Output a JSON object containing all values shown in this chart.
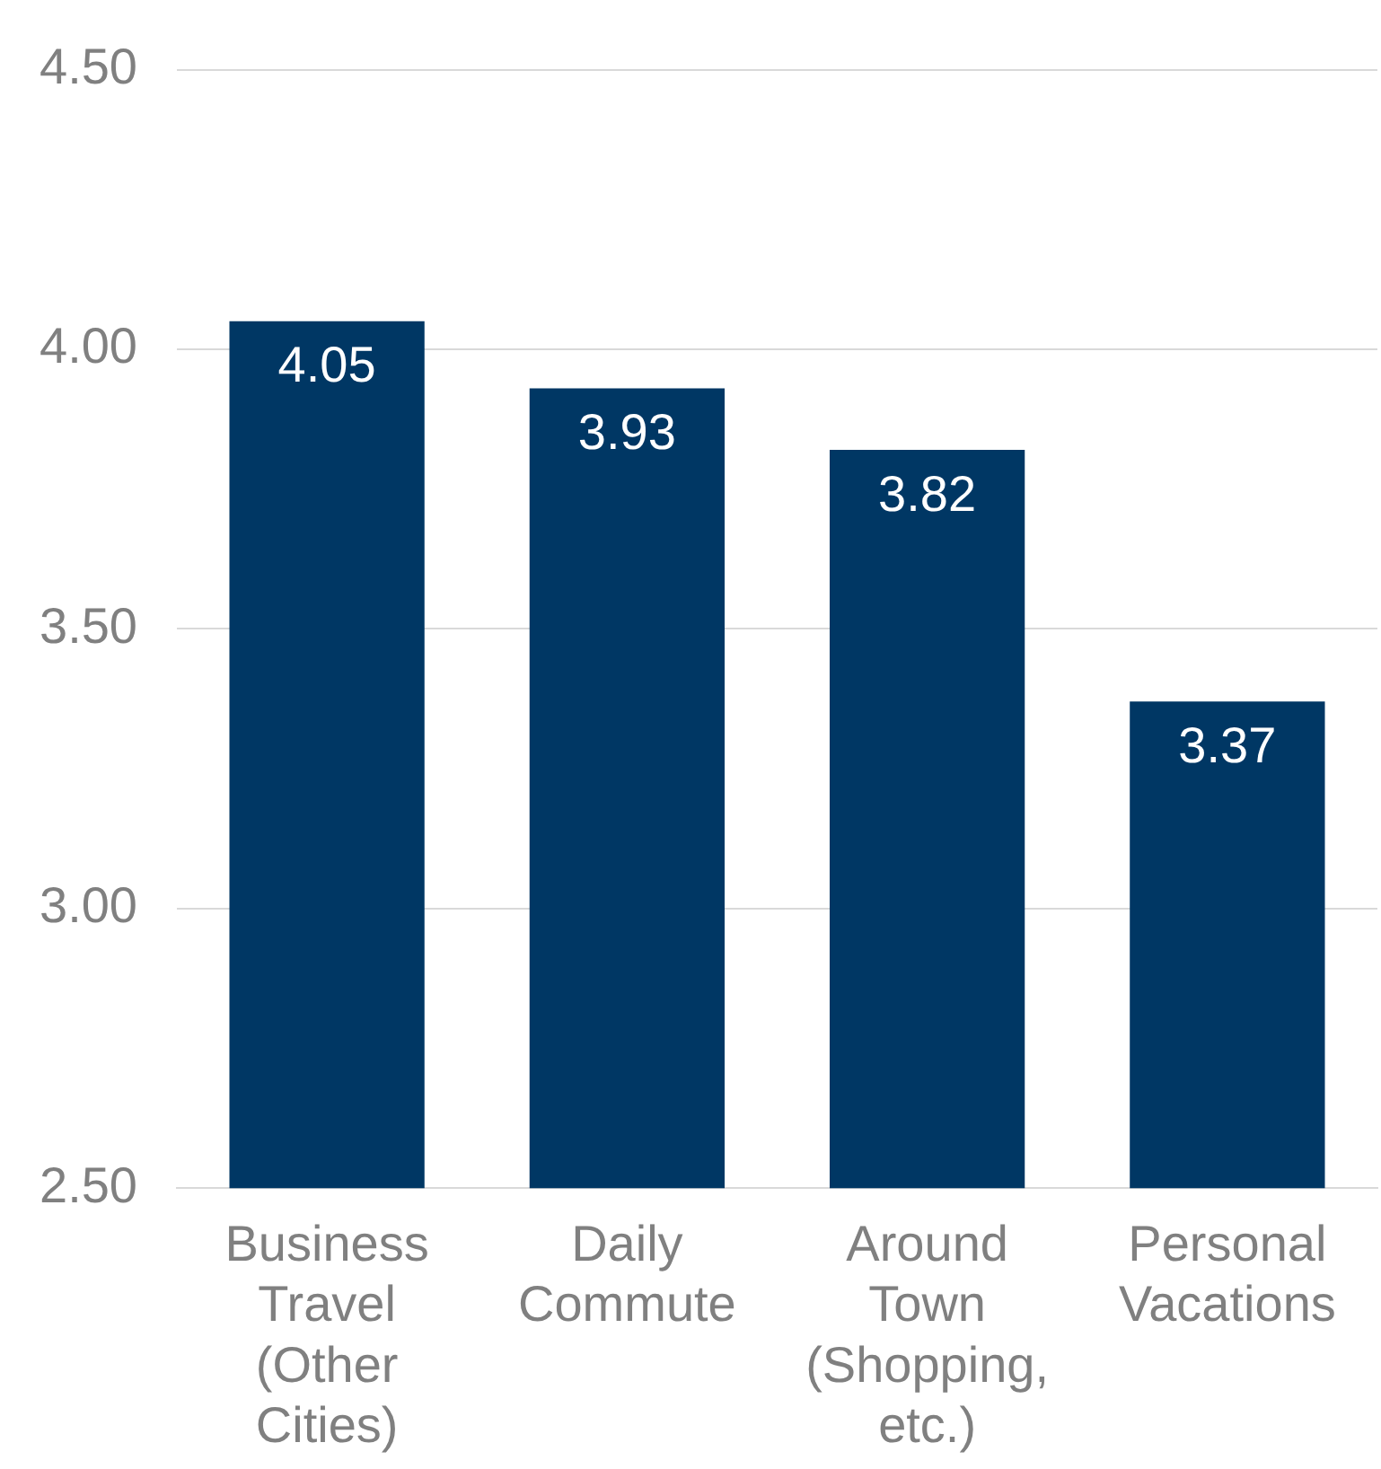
{
  "chart_data": {
    "type": "bar",
    "categories": [
      "Business Travel (Other Cities)",
      "Daily Commute",
      "Around Town (Shopping, etc.)",
      "Personal Vacations"
    ],
    "values": [
      4.05,
      3.93,
      3.82,
      3.37
    ],
    "color": "#003764",
    "ylim": [
      2.5,
      4.5
    ],
    "yticks": [
      {
        "value": 2.5,
        "label": "2.50"
      },
      {
        "value": 3,
        "label": "3.00"
      },
      {
        "value": 3.5,
        "label": "3.50"
      },
      {
        "value": 4,
        "label": "4.00"
      },
      {
        "value": 4.5,
        "label": "4.50"
      }
    ],
    "grid": "y",
    "data_labels": true,
    "legend": false
  }
}
